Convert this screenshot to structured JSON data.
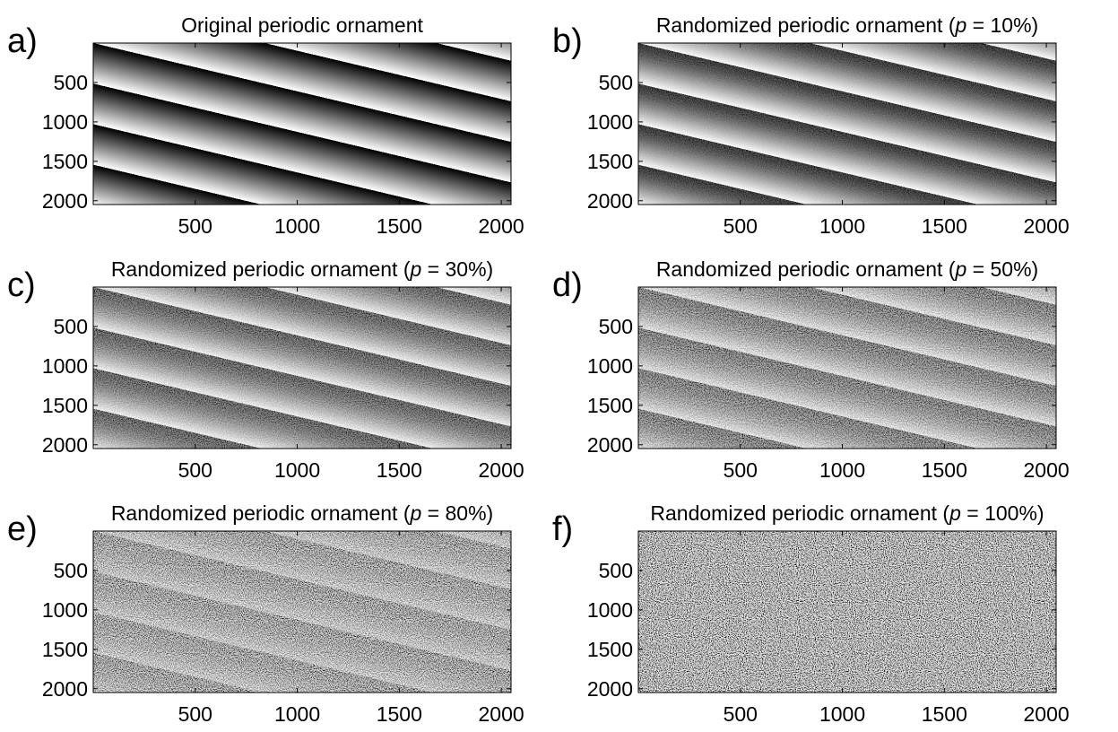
{
  "chart_data": [
    {
      "type": "image",
      "label": "a)",
      "title": [
        "Original periodic ornament"
      ],
      "xlim": [
        0,
        2048
      ],
      "ylim": [
        0,
        2048
      ],
      "xticks": [
        500,
        1000,
        1500,
        2000
      ],
      "yticks": [
        500,
        1000,
        1500,
        2000
      ]
    },
    {
      "type": "image",
      "label": "b)",
      "title": [
        "Randomized periodic ornament (",
        "p",
        " = 10%)"
      ],
      "p": 10,
      "xlim": [
        0,
        2048
      ],
      "ylim": [
        0,
        2048
      ],
      "xticks": [
        500,
        1000,
        1500,
        2000
      ],
      "yticks": [
        500,
        1000,
        1500,
        2000
      ]
    },
    {
      "type": "image",
      "label": "c)",
      "title": [
        "Randomized periodic ornament (",
        "p",
        " = 30%)"
      ],
      "p": 30,
      "xlim": [
        0,
        2048
      ],
      "ylim": [
        0,
        2048
      ],
      "xticks": [
        500,
        1000,
        1500,
        2000
      ],
      "yticks": [
        500,
        1000,
        1500,
        2000
      ]
    },
    {
      "type": "image",
      "label": "d)",
      "title": [
        "Randomized periodic ornament (",
        "p",
        " = 50%)"
      ],
      "p": 50,
      "xlim": [
        0,
        2048
      ],
      "ylim": [
        0,
        2048
      ],
      "xticks": [
        500,
        1000,
        1500,
        2000
      ],
      "yticks": [
        500,
        1000,
        1500,
        2000
      ]
    },
    {
      "type": "image",
      "label": "e)",
      "title": [
        "Randomized periodic ornament (",
        "p",
        " = 80%)"
      ],
      "p": 80,
      "xlim": [
        0,
        2048
      ],
      "ylim": [
        0,
        2048
      ],
      "xticks": [
        500,
        1000,
        1500,
        2000
      ],
      "yticks": [
        500,
        1000,
        1500,
        2000
      ]
    },
    {
      "type": "image",
      "label": "f)",
      "title": [
        "Randomized periodic ornament (",
        "p",
        " = 100%)"
      ],
      "p": 100,
      "xlim": [
        0,
        2048
      ],
      "ylim": [
        0,
        2048
      ],
      "xticks": [
        500,
        1000,
        1500,
        2000
      ],
      "yticks": [
        500,
        1000,
        1500,
        2000
      ]
    }
  ]
}
